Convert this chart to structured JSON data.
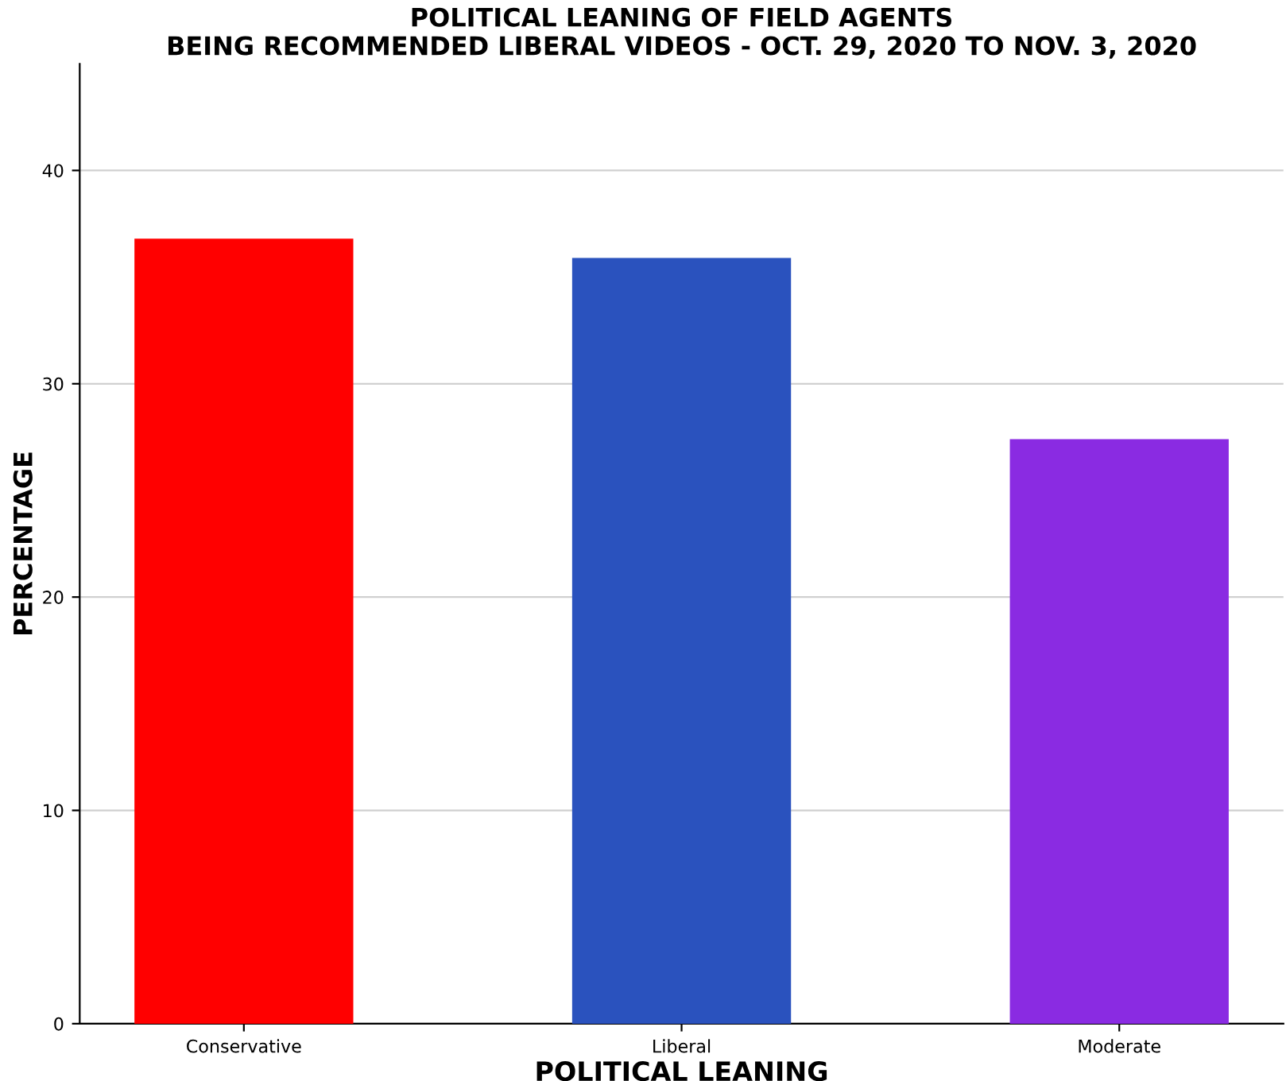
{
  "chart_data": {
    "type": "bar",
    "title": "POLITICAL LEANING OF FIELD AGENTS\nBEING RECOMMENDED LIBERAL VIDEOS - OCT. 29, 2020 TO NOV. 3, 2020",
    "xlabel": "POLITICAL LEANING",
    "ylabel": "PERCENTAGE",
    "categories": [
      "Conservative",
      "Liberal",
      "Moderate"
    ],
    "values": [
      36.8,
      35.9,
      27.4
    ],
    "colors": [
      "#ff0000",
      "#2a52be",
      "#8a2be2"
    ],
    "ylim": [
      0,
      45
    ],
    "yticks": [
      0,
      10,
      20,
      30,
      40
    ],
    "grid": "y"
  }
}
